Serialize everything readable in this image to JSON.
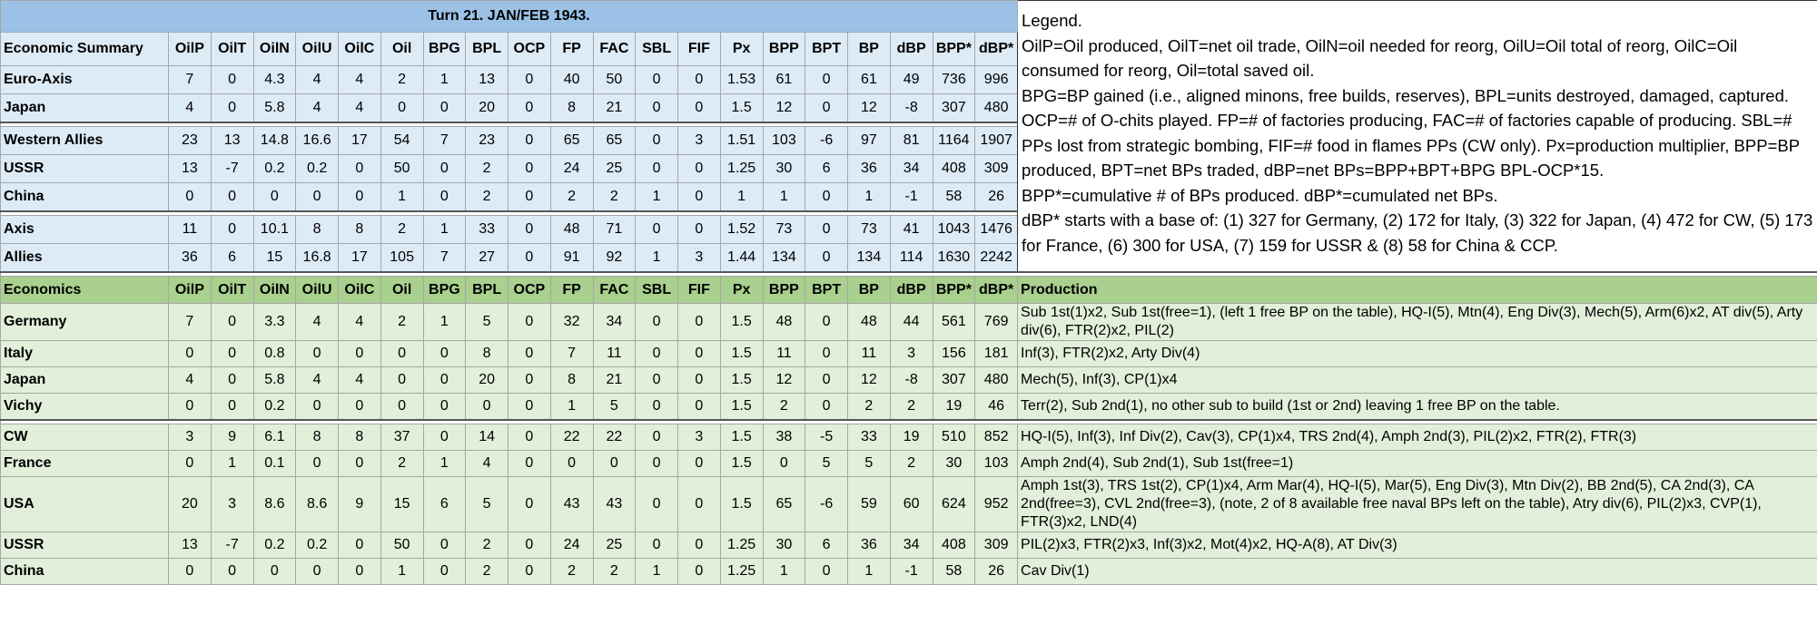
{
  "title": "Turn 21.  JAN/FEB 1943.",
  "legend": [
    "Legend.",
    "OilP=Oil produced, OilT=net oil trade, OilN=oil needed for reorg, OilU=Oil total of reorg, OilC=Oil consumed for reorg, Oil=total saved oil.",
    "BPG=BP gained (i.e., aligned minons, free builds, reserves), BPL=units destroyed, damaged, captured.",
    "OCP=# of O-chits played.  FP=# of factories producing, FAC=# of factories capable of producing.  SBL=# PPs lost from strategic bombing, FIF=# food in flames PPs (CW only).  Px=production multiplier, BPP=BP produced, BPT=net BPs traded, dBP=net BPs=BPP+BPT+BPG BPL-OCP*15.",
    "BPP*=cumulative # of BPs produced.  dBP*=cumulated net BPs.",
    "dBP* starts with a base of:  (1) 327 for Germany, (2) 172 for Italy, (3) 322 for Japan, (4) 472 for CW, (5) 173 for France, (6) 300 for USA, (7) 159 for USSR & (8) 58 for China & CCP."
  ],
  "summary": {
    "header": [
      "Economic Summary",
      "OilP",
      "OilT",
      "OilN",
      "OilU",
      "OilC",
      "Oil",
      "BPG",
      "BPL",
      "OCP",
      "FP",
      "FAC",
      "SBL",
      "FIF",
      "Px",
      "BPP",
      "BPT",
      "BP",
      "dBP",
      "BPP*",
      "dBP*"
    ],
    "groups": [
      [
        [
          "Euro-Axis",
          "7",
          "0",
          "4.3",
          "4",
          "4",
          "2",
          "1",
          "13",
          "0",
          "40",
          "50",
          "0",
          "0",
          "1.53",
          "61",
          "0",
          "61",
          "49",
          "736",
          "996"
        ],
        [
          "Japan",
          "4",
          "0",
          "5.8",
          "4",
          "4",
          "0",
          "0",
          "20",
          "0",
          "8",
          "21",
          "0",
          "0",
          "1.5",
          "12",
          "0",
          "12",
          "-8",
          "307",
          "480"
        ]
      ],
      [
        [
          "Western Allies",
          "23",
          "13",
          "14.8",
          "16.6",
          "17",
          "54",
          "7",
          "23",
          "0",
          "65",
          "65",
          "0",
          "3",
          "1.51",
          "103",
          "-6",
          "97",
          "81",
          "1164",
          "1907"
        ],
        [
          "USSR",
          "13",
          "-7",
          "0.2",
          "0.2",
          "0",
          "50",
          "0",
          "2",
          "0",
          "24",
          "25",
          "0",
          "0",
          "1.25",
          "30",
          "6",
          "36",
          "34",
          "408",
          "309"
        ],
        [
          "China",
          "0",
          "0",
          "0",
          "0",
          "0",
          "1",
          "0",
          "2",
          "0",
          "2",
          "2",
          "1",
          "0",
          "1",
          "1",
          "0",
          "1",
          "-1",
          "58",
          "26"
        ]
      ],
      [
        [
          "Axis",
          "11",
          "0",
          "10.1",
          "8",
          "8",
          "2",
          "1",
          "33",
          "0",
          "48",
          "71",
          "0",
          "0",
          "1.52",
          "73",
          "0",
          "73",
          "41",
          "1043",
          "1476"
        ],
        [
          "Allies",
          "36",
          "6",
          "15",
          "16.8",
          "17",
          "105",
          "7",
          "27",
          "0",
          "91",
          "92",
          "1",
          "3",
          "1.44",
          "134",
          "0",
          "134",
          "114",
          "1630",
          "2242"
        ]
      ]
    ]
  },
  "economics": {
    "header": [
      "Economics",
      "OilP",
      "OilT",
      "OilN",
      "OilU",
      "OilC",
      "Oil",
      "BPG",
      "BPL",
      "OCP",
      "FP",
      "FAC",
      "SBL",
      "FIF",
      "Px",
      "BPP",
      "BPT",
      "BP",
      "dBP",
      "BPP*",
      "dBP*",
      "Production"
    ],
    "groups": [
      [
        [
          "Germany",
          "7",
          "0",
          "3.3",
          "4",
          "4",
          "2",
          "1",
          "5",
          "0",
          "32",
          "34",
          "0",
          "0",
          "1.5",
          "48",
          "0",
          "48",
          "44",
          "561",
          "769",
          "Sub 1st(1)x2, Sub 1st(free=1), (left 1 free BP on the table), HQ-I(5), Mtn(4), Eng Div(3), Mech(5), Arm(6)x2, AT div(5), Arty div(6), FTR(2)x2, PIL(2)"
        ],
        [
          "Italy",
          "0",
          "0",
          "0.8",
          "0",
          "0",
          "0",
          "0",
          "8",
          "0",
          "7",
          "11",
          "0",
          "0",
          "1.5",
          "11",
          "0",
          "11",
          "3",
          "156",
          "181",
          "Inf(3), FTR(2)x2, Arty Div(4)"
        ],
        [
          "Japan",
          "4",
          "0",
          "5.8",
          "4",
          "4",
          "0",
          "0",
          "20",
          "0",
          "8",
          "21",
          "0",
          "0",
          "1.5",
          "12",
          "0",
          "12",
          "-8",
          "307",
          "480",
          "Mech(5), Inf(3), CP(1)x4"
        ],
        [
          "Vichy",
          "0",
          "0",
          "0.2",
          "0",
          "0",
          "0",
          "0",
          "0",
          "0",
          "1",
          "5",
          "0",
          "0",
          "1.5",
          "2",
          "0",
          "2",
          "2",
          "19",
          "46",
          "Terr(2), Sub 2nd(1), no other sub to build (1st or 2nd) leaving 1 free BP on the table."
        ]
      ],
      [
        [
          "CW",
          "3",
          "9",
          "6.1",
          "8",
          "8",
          "37",
          "0",
          "14",
          "0",
          "22",
          "22",
          "0",
          "3",
          "1.5",
          "38",
          "-5",
          "33",
          "19",
          "510",
          "852",
          "HQ-I(5), Inf(3), Inf Div(2), Cav(3), CP(1)x4, TRS 2nd(4), Amph 2nd(3), PIL(2)x2, FTR(2), FTR(3)"
        ],
        [
          "France",
          "0",
          "1",
          "0.1",
          "0",
          "0",
          "2",
          "1",
          "4",
          "0",
          "0",
          "0",
          "0",
          "0",
          "1.5",
          "0",
          "5",
          "5",
          "2",
          "30",
          "103",
          "Amph 2nd(4), Sub 2nd(1), Sub 1st(free=1)"
        ],
        [
          "USA",
          "20",
          "3",
          "8.6",
          "8.6",
          "9",
          "15",
          "6",
          "5",
          "0",
          "43",
          "43",
          "0",
          "0",
          "1.5",
          "65",
          "-6",
          "59",
          "60",
          "624",
          "952",
          "Amph 1st(3), TRS 1st(2), CP(1)x4, Arm Mar(4), HQ-I(5), Mar(5), Eng Div(3), Mtn Div(2), BB 2nd(5), CA 2nd(3), CA 2nd(free=3), CVL 2nd(free=3), (note, 2 of 8 available free naval BPs left on the table), Atry div(6), PIL(2)x3, CVP(1), FTR(3)x2, LND(4)"
        ],
        [
          "USSR",
          "13",
          "-7",
          "0.2",
          "0.2",
          "0",
          "50",
          "0",
          "2",
          "0",
          "24",
          "25",
          "0",
          "0",
          "1.25",
          "30",
          "6",
          "36",
          "34",
          "408",
          "309",
          "PIL(2)x3, FTR(2)x3, Inf(3)x2, Mot(4)x2, HQ-A(8), AT Div(3)"
        ],
        [
          "China",
          "0",
          "0",
          "0",
          "0",
          "0",
          "1",
          "0",
          "2",
          "0",
          "2",
          "2",
          "1",
          "0",
          "1.25",
          "1",
          "0",
          "1",
          "-1",
          "58",
          "26",
          "Cav Div(1)"
        ]
      ]
    ]
  }
}
